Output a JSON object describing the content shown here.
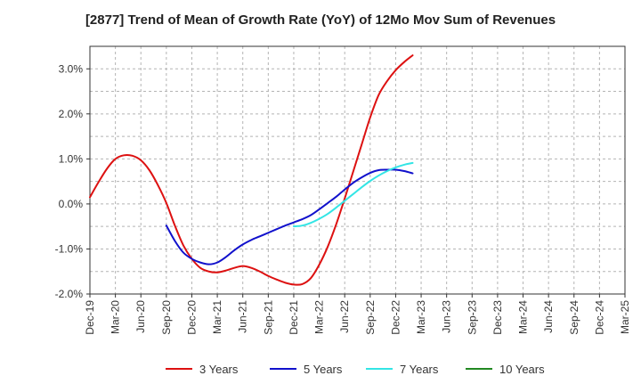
{
  "chart_data": {
    "type": "line",
    "title": "[2877]  Trend of Mean of Growth Rate (YoY) of 12Mo Mov Sum of Revenues",
    "xlabel": "",
    "ylabel": "",
    "x_tick_labels": [
      "Dec-19",
      "Mar-20",
      "Jun-20",
      "Sep-20",
      "Dec-20",
      "Mar-21",
      "Jun-21",
      "Sep-21",
      "Dec-21",
      "Mar-22",
      "Jun-22",
      "Sep-22",
      "Dec-22",
      "Mar-23",
      "Jun-23",
      "Sep-23",
      "Dec-23",
      "Mar-24",
      "Jun-24",
      "Sep-24",
      "Dec-24",
      "Mar-25"
    ],
    "y_tick_labels": [
      "3.0%",
      "2.0%",
      "1.0%",
      "0.0%",
      "-1.0%",
      "-2.0%"
    ],
    "y_tick_values": [
      3.0,
      2.0,
      1.0,
      0.0,
      -1.0,
      -2.0
    ],
    "ylim": [
      -2.0,
      3.5
    ],
    "grid": true,
    "legend_position": "bottom",
    "series": [
      {
        "name": "3 Years",
        "color": "#dd1111",
        "points": [
          [
            0,
            0.15
          ],
          [
            1,
            0.48
          ],
          [
            2,
            0.78
          ],
          [
            3,
            1.0
          ],
          [
            4,
            1.08
          ],
          [
            5,
            1.07
          ],
          [
            6,
            0.97
          ],
          [
            7,
            0.75
          ],
          [
            8,
            0.42
          ],
          [
            9,
            0.02
          ],
          [
            10,
            -0.48
          ],
          [
            11,
            -0.92
          ],
          [
            12,
            -1.22
          ],
          [
            13,
            -1.42
          ],
          [
            14,
            -1.5
          ],
          [
            15,
            -1.52
          ],
          [
            16,
            -1.48
          ],
          [
            17,
            -1.42
          ],
          [
            18,
            -1.38
          ],
          [
            19,
            -1.42
          ],
          [
            20,
            -1.5
          ],
          [
            21,
            -1.6
          ],
          [
            22,
            -1.68
          ],
          [
            23,
            -1.75
          ],
          [
            24,
            -1.79
          ],
          [
            25,
            -1.78
          ],
          [
            26,
            -1.65
          ],
          [
            27,
            -1.35
          ],
          [
            28,
            -0.95
          ],
          [
            29,
            -0.45
          ],
          [
            30,
            0.12
          ],
          [
            31,
            0.72
          ],
          [
            32,
            1.32
          ],
          [
            33,
            1.92
          ],
          [
            34,
            2.42
          ],
          [
            35,
            2.73
          ],
          [
            36,
            2.97
          ],
          [
            37,
            3.15
          ],
          [
            38,
            3.3
          ]
        ]
      },
      {
        "name": "5 Years",
        "color": "#1111cc",
        "points": [
          [
            9,
            -0.48
          ],
          [
            10,
            -0.82
          ],
          [
            11,
            -1.08
          ],
          [
            12,
            -1.22
          ],
          [
            13,
            -1.3
          ],
          [
            14,
            -1.34
          ],
          [
            15,
            -1.3
          ],
          [
            16,
            -1.18
          ],
          [
            17,
            -1.03
          ],
          [
            18,
            -0.9
          ],
          [
            19,
            -0.8
          ],
          [
            20,
            -0.72
          ],
          [
            21,
            -0.64
          ],
          [
            22,
            -0.56
          ],
          [
            23,
            -0.48
          ],
          [
            24,
            -0.41
          ],
          [
            25,
            -0.34
          ],
          [
            26,
            -0.25
          ],
          [
            27,
            -0.12
          ],
          [
            28,
            0.02
          ],
          [
            29,
            0.16
          ],
          [
            30,
            0.32
          ],
          [
            31,
            0.47
          ],
          [
            32,
            0.59
          ],
          [
            33,
            0.69
          ],
          [
            34,
            0.75
          ],
          [
            35,
            0.76
          ],
          [
            36,
            0.76
          ],
          [
            37,
            0.73
          ],
          [
            38,
            0.68
          ]
        ]
      },
      {
        "name": "7 Years",
        "color": "#33e5e5",
        "points": [
          [
            24,
            -0.5
          ],
          [
            25,
            -0.48
          ],
          [
            26,
            -0.42
          ],
          [
            27,
            -0.33
          ],
          [
            28,
            -0.22
          ],
          [
            29,
            -0.08
          ],
          [
            30,
            0.07
          ],
          [
            31,
            0.22
          ],
          [
            32,
            0.37
          ],
          [
            33,
            0.51
          ],
          [
            34,
            0.63
          ],
          [
            35,
            0.73
          ],
          [
            36,
            0.81
          ],
          [
            37,
            0.87
          ],
          [
            38,
            0.91
          ]
        ]
      },
      {
        "name": "10 Years",
        "color": "#228822",
        "points": []
      }
    ]
  }
}
